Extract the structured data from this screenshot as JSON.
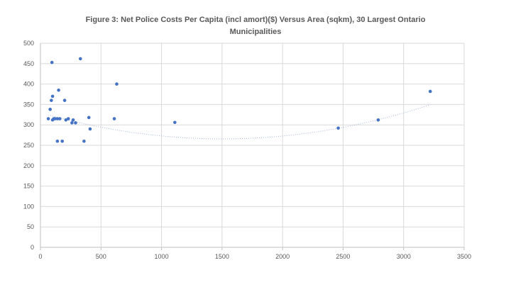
{
  "chart_data": {
    "type": "scatter",
    "title_line1": "Figure 3: Net Police Costs Per Capita (incl amort)($) Versus Area (sqkm), 30 Largest Ontario",
    "title_line2": "Municipalities",
    "xlabel": "",
    "ylabel": "",
    "xlim": [
      0,
      3500
    ],
    "ylim": [
      0,
      500
    ],
    "x_ticks": [
      "0",
      "500",
      "1000",
      "1500",
      "2000",
      "2500",
      "3000",
      "3500"
    ],
    "y_ticks": [
      "0",
      "50",
      "100",
      "150",
      "200",
      "250",
      "300",
      "350",
      "400",
      "450",
      "500"
    ],
    "grid": "horizontal-and-vertical",
    "legend": "none",
    "trendline": "polynomial-dotted",
    "points": [
      {
        "x": 65,
        "y": 315
      },
      {
        "x": 80,
        "y": 338
      },
      {
        "x": 90,
        "y": 360
      },
      {
        "x": 95,
        "y": 453
      },
      {
        "x": 100,
        "y": 312
      },
      {
        "x": 100,
        "y": 370
      },
      {
        "x": 110,
        "y": 315
      },
      {
        "x": 120,
        "y": 315
      },
      {
        "x": 140,
        "y": 315
      },
      {
        "x": 140,
        "y": 260
      },
      {
        "x": 150,
        "y": 385
      },
      {
        "x": 160,
        "y": 315
      },
      {
        "x": 180,
        "y": 260
      },
      {
        "x": 200,
        "y": 360
      },
      {
        "x": 210,
        "y": 312
      },
      {
        "x": 230,
        "y": 315
      },
      {
        "x": 260,
        "y": 305
      },
      {
        "x": 270,
        "y": 312
      },
      {
        "x": 290,
        "y": 305
      },
      {
        "x": 330,
        "y": 462
      },
      {
        "x": 360,
        "y": 260
      },
      {
        "x": 400,
        "y": 318
      },
      {
        "x": 410,
        "y": 290
      },
      {
        "x": 610,
        "y": 315
      },
      {
        "x": 630,
        "y": 400
      },
      {
        "x": 1110,
        "y": 306
      },
      {
        "x": 2460,
        "y": 292
      },
      {
        "x": 2790,
        "y": 312
      },
      {
        "x": 3220,
        "y": 382
      }
    ],
    "trend": {
      "a": 2.843e-05,
      "b": -0.08554,
      "c": 330
    },
    "colors": {
      "point": "#4472c4",
      "grid": "#d9d9d9",
      "axis": "#bfbfbf",
      "trend": "#a6b5d6",
      "text": "#595959"
    }
  }
}
